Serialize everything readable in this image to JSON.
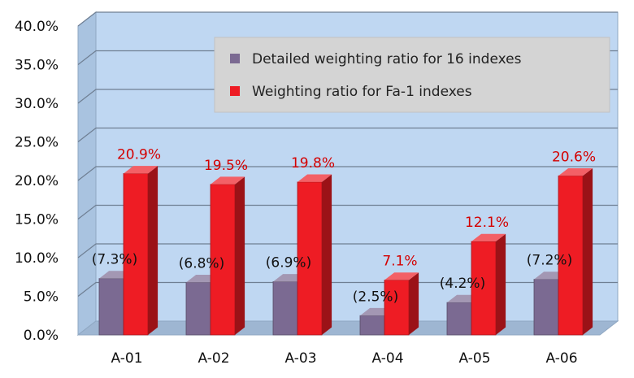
{
  "chart_data": {
    "type": "bar",
    "categories": [
      "A-01",
      "A-02",
      "A-03",
      "A-04",
      "A-05",
      "A-06"
    ],
    "series": [
      {
        "name": "Detailed weighting ratio for 16 indexes",
        "values": [
          7.3,
          6.8,
          6.9,
          2.5,
          4.2,
          7.2
        ],
        "labels": [
          "(7.3%)",
          "(6.8%)",
          "(6.9%)",
          "(2.5%)",
          "(4.2%)",
          "(7.2%)"
        ],
        "color": "#7b6a92"
      },
      {
        "name": "Weighting ratio for Fa-1 indexes",
        "values": [
          20.9,
          19.5,
          19.8,
          7.1,
          12.1,
          20.6
        ],
        "labels": [
          "20.9%",
          "19.5%",
          "19.8%",
          "7.1%",
          "12.1%",
          "20.6%"
        ],
        "color": "#ee1c24"
      }
    ],
    "yticks": [
      "0.0%",
      "5.0%",
      "10.0%",
      "15.0%",
      "20.0%",
      "25.0%",
      "30.0%",
      "35.0%",
      "40.0%"
    ],
    "ylim": [
      0,
      40
    ],
    "grid": true,
    "legend_position": "top-right",
    "style": "3d-bar"
  }
}
